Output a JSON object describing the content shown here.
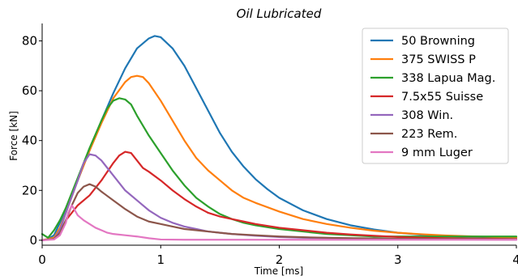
{
  "chart_data": {
    "type": "line",
    "title": "Oil Lubricated",
    "xlabel": "Time [ms]",
    "ylabel": "Force [kN]",
    "xlim": [
      0,
      4
    ],
    "ylim": [
      -2,
      87
    ],
    "xticks": [
      0,
      1,
      2,
      3,
      4
    ],
    "yticks": [
      0,
      20,
      40,
      60,
      80
    ],
    "grid": false,
    "legend_position": "top-right",
    "series": [
      {
        "name": "50 Browning",
        "color": "#1f77b4",
        "points": [
          [
            0,
            0
          ],
          [
            0.05,
            0.5
          ],
          [
            0.1,
            2
          ],
          [
            0.2,
            12
          ],
          [
            0.3,
            24
          ],
          [
            0.4,
            36
          ],
          [
            0.5,
            48
          ],
          [
            0.6,
            59
          ],
          [
            0.7,
            69
          ],
          [
            0.8,
            77
          ],
          [
            0.9,
            81
          ],
          [
            0.95,
            82
          ],
          [
            1.0,
            81.5
          ],
          [
            1.1,
            77
          ],
          [
            1.2,
            70
          ],
          [
            1.3,
            61
          ],
          [
            1.4,
            52
          ],
          [
            1.5,
            43
          ],
          [
            1.6,
            35.5
          ],
          [
            1.7,
            29.5
          ],
          [
            1.8,
            24.5
          ],
          [
            1.9,
            20.5
          ],
          [
            2.0,
            17
          ],
          [
            2.2,
            12
          ],
          [
            2.4,
            8.5
          ],
          [
            2.6,
            6
          ],
          [
            2.8,
            4.3
          ],
          [
            3.0,
            3
          ],
          [
            3.2,
            2.2
          ],
          [
            3.4,
            1.7
          ],
          [
            3.6,
            1.4
          ],
          [
            3.8,
            1.2
          ],
          [
            4.0,
            1.0
          ]
        ]
      },
      {
        "name": "375 SWISS P",
        "color": "#ff7f0e",
        "points": [
          [
            0,
            0
          ],
          [
            0.1,
            1
          ],
          [
            0.15,
            5
          ],
          [
            0.2,
            11
          ],
          [
            0.3,
            24
          ],
          [
            0.4,
            36
          ],
          [
            0.5,
            47
          ],
          [
            0.6,
            57
          ],
          [
            0.7,
            63.5
          ],
          [
            0.75,
            65.5
          ],
          [
            0.8,
            66
          ],
          [
            0.85,
            65.5
          ],
          [
            0.9,
            63
          ],
          [
            1.0,
            56
          ],
          [
            1.1,
            48
          ],
          [
            1.2,
            40
          ],
          [
            1.3,
            33
          ],
          [
            1.4,
            28
          ],
          [
            1.5,
            24
          ],
          [
            1.6,
            20
          ],
          [
            1.7,
            17
          ],
          [
            1.8,
            15
          ],
          [
            2.0,
            11.5
          ],
          [
            2.2,
            8.5
          ],
          [
            2.4,
            6.5
          ],
          [
            2.6,
            5
          ],
          [
            2.8,
            3.8
          ],
          [
            3.0,
            3
          ],
          [
            3.2,
            2.4
          ],
          [
            3.4,
            1.9
          ],
          [
            3.6,
            1.6
          ],
          [
            3.8,
            1.3
          ],
          [
            4.0,
            1.1
          ]
        ]
      },
      {
        "name": "338 Lapua Mag.",
        "color": "#2ca02c",
        "points": [
          [
            0,
            2.5
          ],
          [
            0.05,
            1
          ],
          [
            0.1,
            4
          ],
          [
            0.15,
            8
          ],
          [
            0.2,
            13
          ],
          [
            0.3,
            25
          ],
          [
            0.4,
            37
          ],
          [
            0.5,
            48
          ],
          [
            0.55,
            53
          ],
          [
            0.6,
            56
          ],
          [
            0.65,
            57
          ],
          [
            0.7,
            56.5
          ],
          [
            0.75,
            54.5
          ],
          [
            0.8,
            50
          ],
          [
            0.9,
            42
          ],
          [
            1.0,
            35
          ],
          [
            1.1,
            28
          ],
          [
            1.2,
            22
          ],
          [
            1.3,
            17
          ],
          [
            1.4,
            13.5
          ],
          [
            1.5,
            10.5
          ],
          [
            1.6,
            8.5
          ],
          [
            1.7,
            7
          ],
          [
            1.8,
            6
          ],
          [
            2.0,
            4.5
          ],
          [
            2.2,
            3.5
          ],
          [
            2.4,
            2.5
          ],
          [
            2.6,
            2
          ],
          [
            2.8,
            1.5
          ],
          [
            3.0,
            1.5
          ],
          [
            3.2,
            1.5
          ],
          [
            3.4,
            1.5
          ],
          [
            3.6,
            1.5
          ],
          [
            3.8,
            1.5
          ],
          [
            4.0,
            1.5
          ]
        ]
      },
      {
        "name": "7.5x55 Suisse",
        "color": "#d62728",
        "points": [
          [
            0,
            0
          ],
          [
            0.1,
            0.5
          ],
          [
            0.15,
            3
          ],
          [
            0.2,
            8
          ],
          [
            0.3,
            14
          ],
          [
            0.4,
            18
          ],
          [
            0.5,
            24
          ],
          [
            0.6,
            31
          ],
          [
            0.65,
            34
          ],
          [
            0.7,
            35.5
          ],
          [
            0.75,
            35
          ],
          [
            0.8,
            32
          ],
          [
            0.85,
            29
          ],
          [
            0.9,
            27.5
          ],
          [
            1.0,
            24
          ],
          [
            1.1,
            20
          ],
          [
            1.2,
            16.5
          ],
          [
            1.3,
            13.5
          ],
          [
            1.4,
            11
          ],
          [
            1.5,
            9.5
          ],
          [
            1.6,
            8.5
          ],
          [
            1.7,
            7.5
          ],
          [
            1.8,
            6.5
          ],
          [
            2.0,
            5
          ],
          [
            2.2,
            4
          ],
          [
            2.4,
            3
          ],
          [
            2.6,
            2.3
          ],
          [
            2.8,
            1.8
          ],
          [
            3.0,
            1.3
          ],
          [
            3.2,
            1
          ],
          [
            3.4,
            0.8
          ],
          [
            3.6,
            0.7
          ],
          [
            3.8,
            0.6
          ],
          [
            4.0,
            0.5
          ]
        ]
      },
      {
        "name": "308 Win.",
        "color": "#9467bd",
        "points": [
          [
            0,
            0
          ],
          [
            0.1,
            0.5
          ],
          [
            0.15,
            4
          ],
          [
            0.2,
            11
          ],
          [
            0.3,
            24
          ],
          [
            0.35,
            31
          ],
          [
            0.4,
            34.5
          ],
          [
            0.45,
            34
          ],
          [
            0.5,
            32
          ],
          [
            0.6,
            26
          ],
          [
            0.7,
            20
          ],
          [
            0.8,
            16
          ],
          [
            0.9,
            12
          ],
          [
            1.0,
            9
          ],
          [
            1.1,
            7
          ],
          [
            1.2,
            5.5
          ],
          [
            1.3,
            4.5
          ],
          [
            1.4,
            3.5
          ],
          [
            1.5,
            3
          ],
          [
            1.6,
            2.5
          ],
          [
            1.8,
            1.8
          ],
          [
            2.0,
            1.3
          ],
          [
            2.2,
            1
          ],
          [
            2.5,
            0.8
          ],
          [
            3.0,
            0.5
          ],
          [
            3.5,
            0.3
          ],
          [
            4.0,
            0.2
          ]
        ]
      },
      {
        "name": "223 Rem.",
        "color": "#8c564b",
        "points": [
          [
            0,
            0
          ],
          [
            0.1,
            0.5
          ],
          [
            0.15,
            3
          ],
          [
            0.2,
            8
          ],
          [
            0.25,
            14
          ],
          [
            0.3,
            19
          ],
          [
            0.35,
            21.5
          ],
          [
            0.4,
            22.5
          ],
          [
            0.45,
            21.5
          ],
          [
            0.5,
            19.5
          ],
          [
            0.6,
            16
          ],
          [
            0.7,
            12.5
          ],
          [
            0.8,
            9.5
          ],
          [
            0.9,
            7.5
          ],
          [
            1.0,
            6.5
          ],
          [
            1.1,
            5.5
          ],
          [
            1.2,
            4.5
          ],
          [
            1.3,
            4
          ],
          [
            1.4,
            3.5
          ],
          [
            1.5,
            3
          ],
          [
            1.6,
            2.5
          ],
          [
            1.8,
            2
          ],
          [
            2.0,
            1.5
          ],
          [
            2.2,
            1.2
          ],
          [
            2.5,
            0.9
          ],
          [
            3.0,
            0.6
          ],
          [
            3.5,
            0.5
          ],
          [
            4.0,
            0.4
          ]
        ]
      },
      {
        "name": "9 mm Luger",
        "color": "#e377c2",
        "points": [
          [
            0,
            0
          ],
          [
            0.1,
            0.3
          ],
          [
            0.15,
            2
          ],
          [
            0.2,
            7
          ],
          [
            0.22,
            11
          ],
          [
            0.25,
            14
          ],
          [
            0.27,
            12.5
          ],
          [
            0.3,
            10
          ],
          [
            0.35,
            8
          ],
          [
            0.4,
            6.5
          ],
          [
            0.45,
            5
          ],
          [
            0.5,
            4
          ],
          [
            0.55,
            3
          ],
          [
            0.6,
            2.5
          ],
          [
            0.7,
            2
          ],
          [
            0.8,
            1.5
          ],
          [
            0.9,
            0.8
          ],
          [
            1.0,
            0.3
          ],
          [
            1.2,
            0.2
          ],
          [
            1.5,
            0.2
          ],
          [
            2.0,
            0.2
          ],
          [
            3.0,
            0.2
          ],
          [
            4.0,
            0.2
          ]
        ]
      }
    ]
  }
}
